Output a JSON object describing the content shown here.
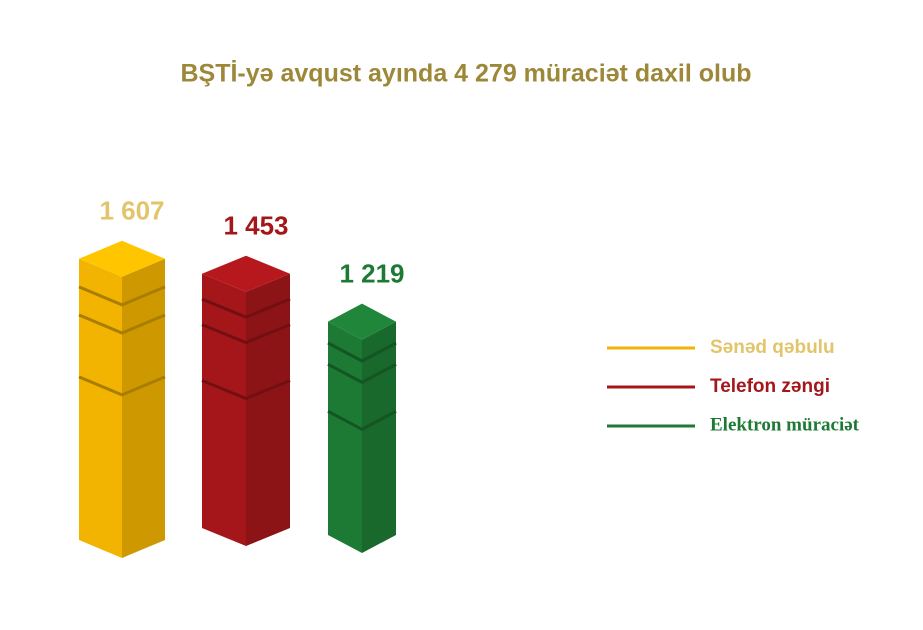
{
  "chart_data": {
    "type": "bar3d",
    "title": "BŞTİ-yə avqust ayında 4 279 müraciət daxil olub",
    "series": [
      {
        "name": "Sənəd qəbulu",
        "color": "#f2b400",
        "values": [
          1607
        ],
        "value_labels": [
          "1 607"
        ]
      },
      {
        "name": "Telefon zəngi",
        "color": "#a5161a",
        "values": [
          1453
        ],
        "value_labels": [
          "1 453"
        ]
      },
      {
        "name": "Elektron müraciət",
        "color": "#1d7a34",
        "values": [
          1219
        ],
        "value_labels": [
          "1 219"
        ]
      }
    ]
  }
}
